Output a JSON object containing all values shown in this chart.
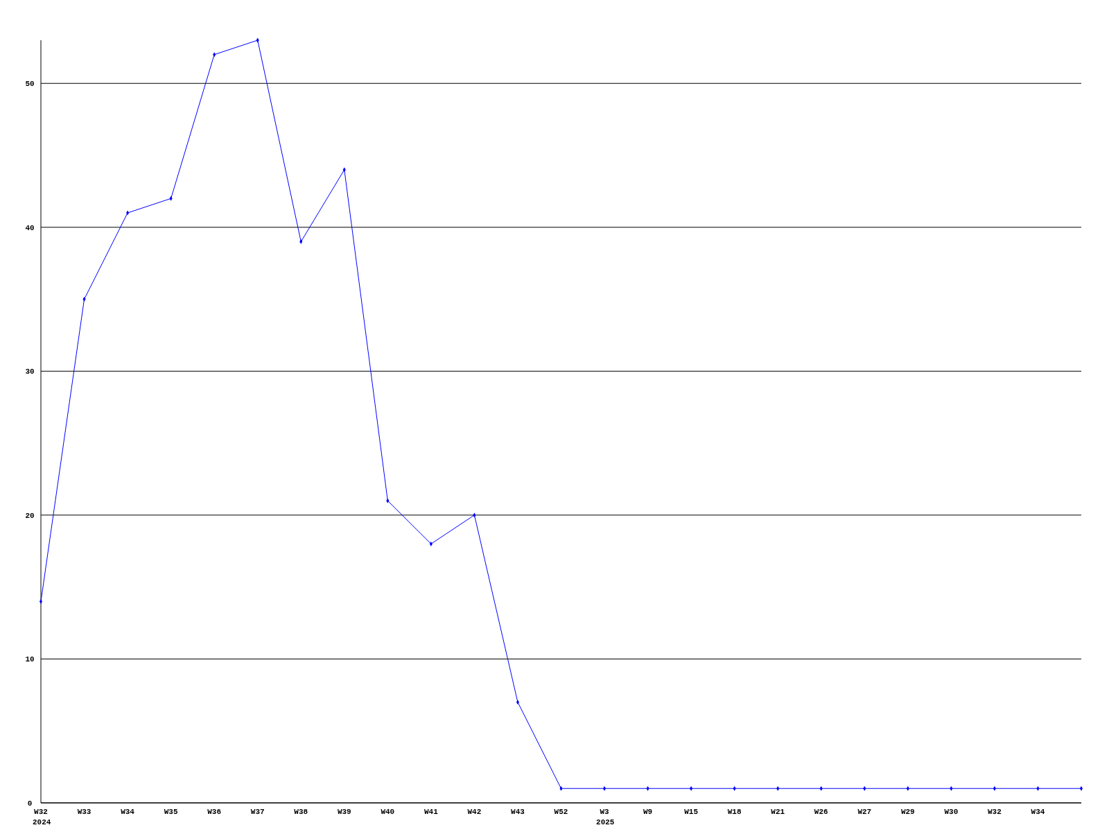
{
  "chart_data": {
    "type": "line",
    "categories": [
      "W32\n2024",
      "W33",
      "W34",
      "W35",
      "W36",
      "W37",
      "W38",
      "W39",
      "W40",
      "W41",
      "W42",
      "W43",
      "W52",
      "W3\n2025",
      "W9",
      "W15",
      "W18",
      "W21",
      "W26",
      "W27",
      "W29",
      "W30",
      "W32",
      "W34",
      null
    ],
    "series": [
      {
        "color": "#0000ff",
        "values": [
          14,
          35,
          41,
          42,
          52,
          53,
          39,
          44,
          21,
          18,
          20,
          7,
          1,
          1,
          1,
          1,
          1,
          1,
          1,
          1,
          1,
          1,
          1,
          1,
          1
        ]
      }
    ],
    "ylim": [
      0,
      53
    ],
    "yticks": [
      0,
      10,
      20,
      30,
      40,
      50
    ],
    "grid": "y",
    "marker": "diamond",
    "line_style": "solid"
  }
}
